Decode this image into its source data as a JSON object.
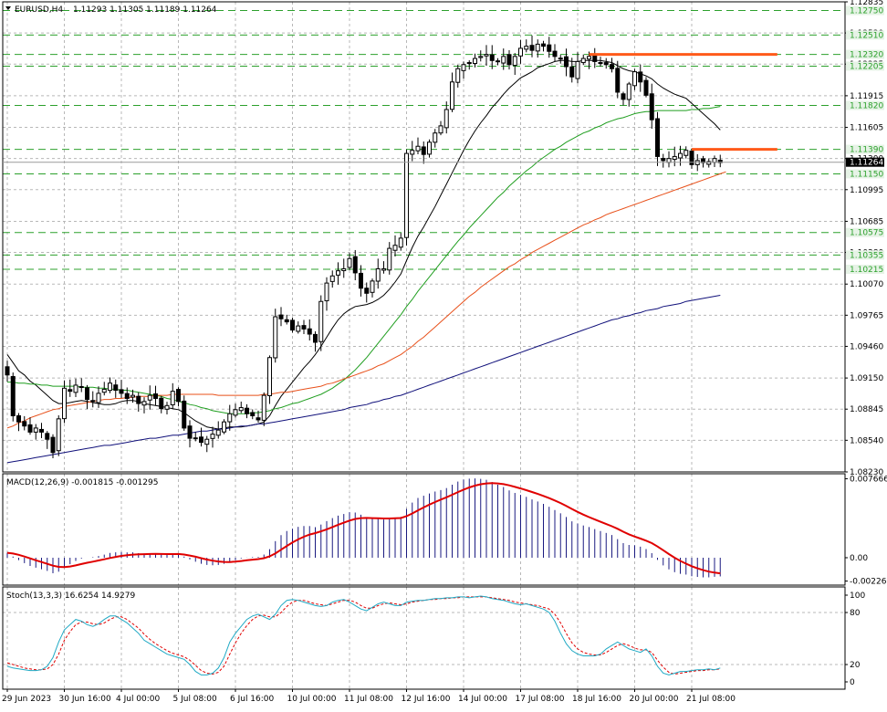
{
  "header": {
    "symbol": "EURUSD,H4",
    "ohlc": "1.11293 1.11305 1.11189 1.11264",
    "macd": "MACD(12,26,9) -0.001815 -0.001295",
    "stoch": "Stoch(13,3,3) 16.6254 14.9279"
  },
  "colors": {
    "bull": "#ffffff",
    "bear": "#000000",
    "ma_fast": "#000000",
    "ma_mid": "#1f9e1f",
    "ma_slow": "#e8501a",
    "ma_long": "#10107a",
    "hline": "#ff5a1a",
    "level": "#2ca02c",
    "macd_hist": "#1a1a80",
    "macd_signal": "#e00000",
    "stoch_main": "#1fa9c4",
    "stoch_signal": "#e00000"
  },
  "chart_data": [
    {
      "type": "candlestick",
      "title": "EURUSD,H4",
      "ylim": [
        1.0823,
        1.12835
      ],
      "price_axis_ticks": [
        "1.12835",
        "1.12530",
        "1.12225",
        "1.11915",
        "1.11605",
        "1.11300",
        "1.10995",
        "1.10685",
        "1.10380",
        "1.10070",
        "1.09765",
        "1.09460",
        "1.09150",
        "1.08845",
        "1.08540",
        "1.08230"
      ],
      "level_lines": [
        {
          "label": "1.12750",
          "value": 1.1275
        },
        {
          "label": "1.12510",
          "value": 1.1251
        },
        {
          "label": "1.12320",
          "value": 1.1232
        },
        {
          "label": "1.12205",
          "value": 1.12205
        },
        {
          "label": "1.11820",
          "value": 1.1182
        },
        {
          "label": "1.11390",
          "value": 1.1139
        },
        {
          "label": "1.11150",
          "value": 1.1115
        },
        {
          "label": "1.10575",
          "value": 1.10575
        },
        {
          "label": "1.10355",
          "value": 1.10355
        },
        {
          "label": "1.10215",
          "value": 1.10215
        }
      ],
      "current_price": "1.11264",
      "resistance_lines": [
        {
          "value": 1.1232,
          "from_bar": 102,
          "to_bar": 135
        },
        {
          "value": 1.1139,
          "from_bar": 120,
          "to_bar": 135
        }
      ],
      "x_labels": [
        {
          "bar": 0,
          "label": "29 Jun 2023"
        },
        {
          "bar": 10,
          "label": "30 Jun 16:00"
        },
        {
          "bar": 20,
          "label": "4 Jul 00:00"
        },
        {
          "bar": 30,
          "label": "5 Jul 08:00"
        },
        {
          "bar": 40,
          "label": "6 Jul 16:00"
        },
        {
          "bar": 50,
          "label": "10 Jul 00:00"
        },
        {
          "bar": 60,
          "label": "11 Jul 08:00"
        },
        {
          "bar": 70,
          "label": "12 Jul 16:00"
        },
        {
          "bar": 80,
          "label": "14 Jul 00:00"
        },
        {
          "bar": 90,
          "label": "17 Jul 08:00"
        },
        {
          "bar": 100,
          "label": "18 Jul 16:00"
        },
        {
          "bar": 110,
          "label": "20 Jul 00:00"
        },
        {
          "bar": 120,
          "label": "21 Jul 08:00"
        }
      ],
      "close": [
        1.0918,
        1.0878,
        1.0872,
        1.0868,
        1.0862,
        1.0866,
        1.0862,
        1.0855,
        1.0842,
        1.0875,
        1.0905,
        1.0902,
        1.0908,
        1.0906,
        1.0894,
        1.0892,
        1.09,
        1.0904,
        1.091,
        1.0903,
        1.09,
        1.0895,
        1.0898,
        1.089,
        1.0892,
        1.0898,
        1.0895,
        1.0885,
        1.0888,
        1.0902,
        1.0892,
        1.0866,
        1.0856,
        1.0856,
        1.0852,
        1.0855,
        1.086,
        1.0864,
        1.0872,
        1.088,
        1.0884,
        1.0886,
        1.088,
        1.0878,
        1.0874,
        1.0898,
        1.0935,
        1.0975,
        1.0973,
        1.097,
        1.0962,
        1.0966,
        1.0963,
        1.0958,
        1.095,
        1.099,
        1.1008,
        1.1015,
        1.102,
        1.1022,
        1.1032,
        1.1018,
        1.1003,
        1.0998,
        1.101,
        1.1022,
        1.1022,
        1.1042,
        1.1045,
        1.1052,
        1.1135,
        1.1138,
        1.1142,
        1.1134,
        1.1146,
        1.1155,
        1.1162,
        1.1178,
        1.1205,
        1.1218,
        1.1222,
        1.1224,
        1.1228,
        1.123,
        1.1232,
        1.1226,
        1.1225,
        1.123,
        1.1222,
        1.123,
        1.1238,
        1.124,
        1.1236,
        1.1242,
        1.124,
        1.1235,
        1.123,
        1.1228,
        1.122,
        1.121,
        1.1225,
        1.1228,
        1.123,
        1.1225,
        1.1224,
        1.1222,
        1.1218,
        1.1195,
        1.1188,
        1.1203,
        1.1215,
        1.1205,
        1.1192,
        1.1168,
        1.1132,
        1.1128,
        1.113,
        1.1132,
        1.1135,
        1.1138,
        1.1124,
        1.1128,
        1.1126,
        1.1127,
        1.113,
        1.1126
      ],
      "series": [
        {
          "name": "",
          "values": [
            1.0938,
            1.093,
            1.0922,
            1.0918,
            1.0912,
            1.0908,
            1.0903,
            1.0898,
            1.0893,
            1.089,
            1.089,
            1.0891,
            1.0892,
            1.0893,
            1.0892,
            1.0891,
            1.089,
            1.0889,
            1.0889,
            1.089,
            1.0892,
            1.0893,
            1.0893,
            1.0892,
            1.089,
            1.0889,
            1.0888,
            1.0887,
            1.0886,
            1.0885,
            1.0884,
            1.0881,
            1.0877,
            1.0873,
            1.087,
            1.0867,
            1.0866,
            1.0865,
            1.0866,
            1.0867,
            1.0867,
            1.0867,
            1.0868,
            1.0869,
            1.087,
            1.0872,
            1.0878,
            1.0888,
            1.0897,
            1.0904,
            1.0911,
            1.0918,
            1.0925,
            1.0931,
            1.0938,
            1.0946,
            1.0955,
            1.0964,
            1.0972,
            1.0978,
            1.0982,
            1.0985,
            1.0986,
            1.0987,
            1.0989,
            1.0992,
            1.0996,
            1.1002,
            1.1009,
            1.1017,
            1.103,
            1.1043,
            1.1054,
            1.1063,
            1.1073,
            1.1083,
            1.1094,
            1.1105,
            1.1116,
            1.1127,
            1.1138,
            1.1148,
            1.1157,
            1.1165,
            1.1172,
            1.118,
            1.1186,
            1.1193,
            1.1199,
            1.1204,
            1.1209,
            1.1212,
            1.1215,
            1.1219,
            1.1221,
            1.1223,
            1.1225,
            1.1226,
            1.1226,
            1.1225,
            1.1225,
            1.1226,
            1.1226,
            1.1226,
            1.1226,
            1.1225,
            1.1224,
            1.1221,
            1.1218,
            1.1216,
            1.1215,
            1.1213,
            1.1211,
            1.1208,
            1.1203,
            1.1199,
            1.1196,
            1.1193,
            1.1191,
            1.1189,
            1.1184,
            1.1179,
            1.1174,
            1.1169,
            1.1164,
            1.1158
          ]
        },
        {
          "name": "",
          "values": [
            1.0911,
            1.0911,
            1.091,
            1.091,
            1.0909,
            1.0909,
            1.0908,
            1.0908,
            1.0907,
            1.0907,
            1.0907,
            1.0907,
            1.0907,
            1.0906,
            1.0906,
            1.0906,
            1.0905,
            1.0905,
            1.0904,
            1.0904,
            1.0903,
            1.0903,
            1.0902,
            1.0901,
            1.09,
            1.0899,
            1.0898,
            1.0897,
            1.0895,
            1.0894,
            1.0892,
            1.0891,
            1.0889,
            1.0888,
            1.0886,
            1.0885,
            1.0883,
            1.0882,
            1.0881,
            1.088,
            1.088,
            1.088,
            1.088,
            1.0881,
            1.0881,
            1.0882,
            1.0883,
            1.0885,
            1.0886,
            1.0888,
            1.089,
            1.0891,
            1.0893,
            1.0895,
            1.0897,
            1.0899,
            1.0902,
            1.0905,
            1.0909,
            1.0913,
            1.0918,
            1.0923,
            1.0929,
            1.0935,
            1.0942,
            1.0949,
            1.0956,
            1.0963,
            1.097,
            1.0977,
            1.0985,
            1.0992,
            1.1,
            1.1007,
            1.1014,
            1.1021,
            1.1028,
            1.1035,
            1.1042,
            1.1049,
            1.1055,
            1.1062,
            1.1068,
            1.1074,
            1.108,
            1.1086,
            1.1092,
            1.1097,
            1.1103,
            1.1108,
            1.1113,
            1.1118,
            1.1122,
            1.1127,
            1.1131,
            1.1135,
            1.1139,
            1.1142,
            1.1146,
            1.1149,
            1.1152,
            1.1155,
            1.1157,
            1.116,
            1.1162,
            1.1165,
            1.1167,
            1.1169,
            1.117,
            1.1172,
            1.1174,
            1.1175,
            1.1176,
            1.1176,
            1.1177,
            1.1177,
            1.1177,
            1.1177,
            1.1177,
            1.1177,
            1.1178,
            1.1178,
            1.1179,
            1.1179,
            1.118,
            1.1181
          ]
        },
        {
          "name": "",
          "values": [
            1.0866,
            1.0868,
            1.0871,
            1.0873,
            1.0876,
            1.0878,
            1.088,
            1.0882,
            1.0884,
            1.0885,
            1.0887,
            1.0888,
            1.0889,
            1.089,
            1.0891,
            1.0892,
            1.0893,
            1.0894,
            1.0894,
            1.0895,
            1.0895,
            1.0896,
            1.0896,
            1.0897,
            1.0897,
            1.0897,
            1.0898,
            1.0898,
            1.0898,
            1.0899,
            1.0899,
            1.0899,
            1.0899,
            1.0899,
            1.0899,
            1.0899,
            1.0899,
            1.0898,
            1.0898,
            1.0898,
            1.0898,
            1.0898,
            1.0898,
            1.0898,
            1.0898,
            1.0899,
            1.0899,
            1.09,
            1.0901,
            1.0901,
            1.0902,
            1.0903,
            1.0904,
            1.0905,
            1.0906,
            1.0907,
            1.0909,
            1.091,
            1.0912,
            1.0914,
            1.0916,
            1.0918,
            1.092,
            1.0922,
            1.0924,
            1.0927,
            1.0929,
            1.0932,
            1.0935,
            1.0938,
            1.0942,
            1.0946,
            1.0951,
            1.0955,
            1.096,
            1.0965,
            1.097,
            1.0975,
            1.098,
            1.0985,
            1.099,
            1.0995,
            1.0999,
            1.1004,
            1.1008,
            1.1012,
            1.1016,
            1.102,
            1.1024,
            1.1027,
            1.1031,
            1.1034,
            1.1038,
            1.1041,
            1.1044,
            1.1047,
            1.105,
            1.1053,
            1.1056,
            1.1059,
            1.1062,
            1.1065,
            1.1067,
            1.107,
            1.1072,
            1.1075,
            1.1077,
            1.1079,
            1.1081,
            1.1083,
            1.1085,
            1.1087,
            1.1089,
            1.1091,
            1.1093,
            1.1095,
            1.1097,
            1.1099,
            1.1101,
            1.1103,
            1.1105,
            1.1107,
            1.1109,
            1.1111,
            1.1113,
            1.1115,
            1.1117
          ]
        },
        {
          "name": "",
          "values": [
            1.0832,
            1.0833,
            1.0834,
            1.0835,
            1.0836,
            1.0837,
            1.0838,
            1.0839,
            1.084,
            1.0841,
            1.0842,
            1.0843,
            1.0844,
            1.0845,
            1.0846,
            1.0847,
            1.0848,
            1.0849,
            1.0849,
            1.085,
            1.0851,
            1.0852,
            1.0853,
            1.0854,
            1.0855,
            1.0856,
            1.0856,
            1.0857,
            1.0858,
            1.0859,
            1.0859,
            1.086,
            1.0861,
            1.0862,
            1.0863,
            1.0863,
            1.0864,
            1.0865,
            1.0865,
            1.0866,
            1.0867,
            1.0868,
            1.0868,
            1.0869,
            1.087,
            1.087,
            1.0871,
            1.0872,
            1.0873,
            1.0874,
            1.0875,
            1.0876,
            1.0877,
            1.0878,
            1.0879,
            1.088,
            1.0881,
            1.0882,
            1.0883,
            1.0884,
            1.0886,
            1.0887,
            1.0888,
            1.0889,
            1.0891,
            1.0892,
            1.0894,
            1.0895,
            1.0897,
            1.0898,
            1.09,
            1.0902,
            1.0904,
            1.0906,
            1.0908,
            1.091,
            1.0912,
            1.0914,
            1.0916,
            1.0918,
            1.092,
            1.0922,
            1.0924,
            1.0926,
            1.0928,
            1.093,
            1.0932,
            1.0934,
            1.0936,
            1.0938,
            1.094,
            1.0942,
            1.0944,
            1.0946,
            1.0948,
            1.095,
            1.0952,
            1.0954,
            1.0956,
            1.0958,
            1.096,
            1.0962,
            1.0964,
            1.0966,
            1.0968,
            1.097,
            1.0972,
            1.0973,
            1.0975,
            1.0976,
            1.0978,
            1.0979,
            1.0981,
            1.0982,
            1.0983,
            1.0985,
            1.0986,
            1.0987,
            1.0988,
            1.099,
            1.0991,
            1.0992,
            1.0993,
            1.0994,
            1.0995,
            1.0996
          ]
        }
      ]
    },
    {
      "type": "bar",
      "title": "MACD(12,26,9) -0.001815 -0.001295",
      "ylim": [
        -0.00266,
        0.00815
      ],
      "axis_ticks": [
        {
          "label": "0.007666",
          "value": 0.007666
        },
        {
          "label": "0.00",
          "value": 0.0
        },
        {
          "label": "-0.002266",
          "value": -0.002266
        }
      ],
      "signal_end_value": -0.001295,
      "last_value": -0.001815
    },
    {
      "type": "line",
      "title": "Stoch(13,3,3) 16.6254 14.9279",
      "ylim": [
        0,
        100
      ],
      "axis_ticks": [
        {
          "label": "100",
          "value": 100
        },
        {
          "label": "80",
          "value": 80
        },
        {
          "label": "20",
          "value": 20
        },
        {
          "label": "0",
          "value": 0
        }
      ],
      "main_values": [
        18,
        16,
        15,
        14,
        13,
        13,
        14,
        18,
        28,
        46,
        60,
        66,
        72,
        70,
        66,
        64,
        67,
        72,
        76,
        76,
        72,
        68,
        62,
        56,
        48,
        44,
        40,
        36,
        32,
        30,
        28,
        26,
        20,
        12,
        8,
        8,
        10,
        16,
        28,
        46,
        56,
        64,
        72,
        76,
        78,
        75,
        72,
        78,
        88,
        94,
        95,
        94,
        92,
        90,
        88,
        87,
        88,
        92,
        94,
        95,
        92,
        88,
        84,
        82,
        86,
        90,
        92,
        90,
        88,
        88,
        92,
        93,
        94,
        94,
        95,
        96,
        96,
        97,
        97,
        98,
        98,
        97,
        98,
        99,
        98,
        96,
        95,
        94,
        92,
        90,
        89,
        90,
        88,
        86,
        84,
        80,
        70,
        56,
        44,
        36,
        32,
        30,
        30,
        30,
        32,
        38,
        42,
        46,
        42,
        38,
        36,
        34,
        38,
        30,
        18,
        10,
        8,
        10,
        12,
        12,
        13,
        14,
        14,
        15,
        14,
        16
      ],
      "signal_values": [
        22,
        20,
        18,
        16,
        15,
        14,
        14,
        15,
        20,
        32,
        48,
        58,
        66,
        69,
        69,
        67,
        66,
        68,
        72,
        75,
        75,
        72,
        67,
        62,
        55,
        49,
        44,
        40,
        36,
        33,
        31,
        29,
        25,
        19,
        13,
        10,
        9,
        11,
        18,
        32,
        45,
        56,
        65,
        72,
        76,
        77,
        75,
        75,
        80,
        87,
        92,
        94,
        94,
        92,
        90,
        89,
        88,
        90,
        92,
        94,
        94,
        92,
        88,
        85,
        85,
        88,
        90,
        91,
        90,
        89,
        90,
        92,
        93,
        94,
        95,
        95,
        96,
        96,
        97,
        97,
        98,
        98,
        98,
        98,
        98,
        97,
        96,
        95,
        94,
        92,
        91,
        90,
        89,
        88,
        86,
        84,
        78,
        68,
        56,
        45,
        38,
        34,
        32,
        31,
        31,
        34,
        38,
        42,
        44,
        42,
        39,
        37,
        37,
        34,
        25,
        17,
        11,
        9,
        10,
        11,
        12,
        13,
        13,
        14,
        14,
        15
      ]
    }
  ]
}
